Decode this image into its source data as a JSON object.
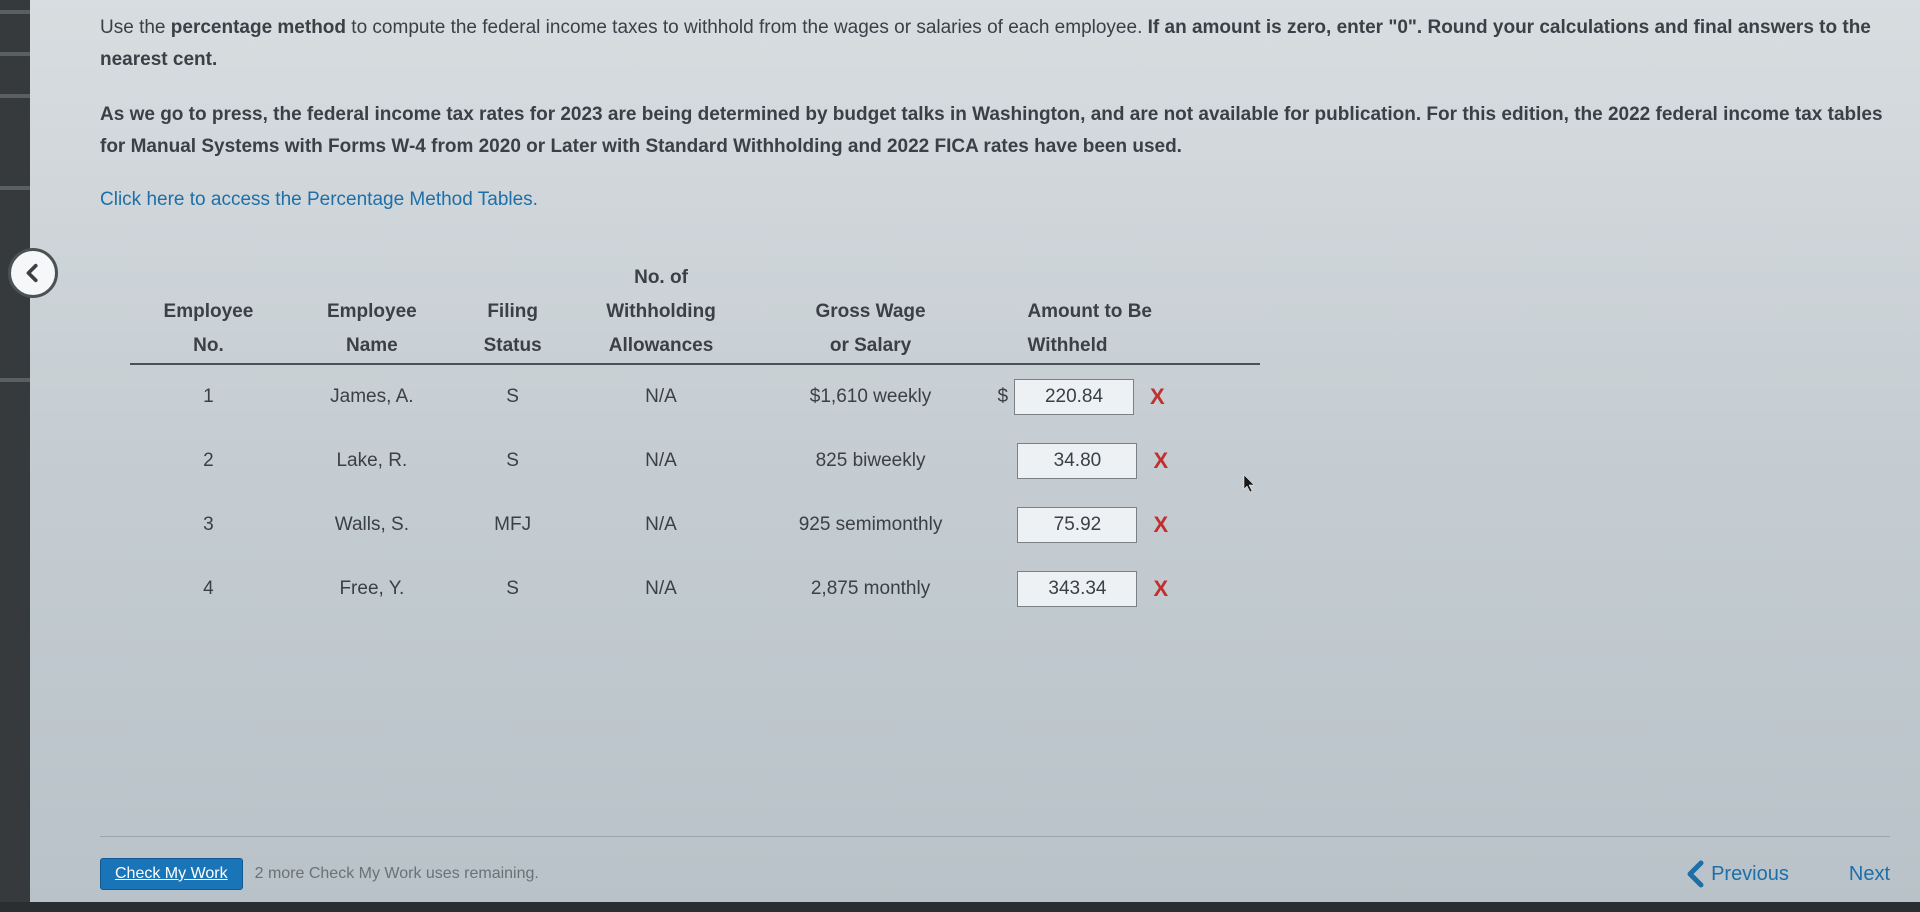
{
  "instructions": {
    "line1_pre": "Use the ",
    "line1_bold": "percentage method",
    "line1_post": " to compute the federal income taxes to withhold from the wages or salaries of each employee. ",
    "line1_tail_bold": "If an amount is zero, enter \"0\". Round your calculations and final answers to the nearest cent."
  },
  "note": "As we go to press, the federal income tax rates for 2023 are being determined by budget talks in Washington, and are not available for publication. For this edition, the 2022 federal income tax tables for Manual Systems with Forms W-4 from 2020 or Later with Standard Withholding and 2022 FICA rates have been used.",
  "link_text": "Click here to access the Percentage Method Tables.",
  "table": {
    "headers": {
      "emp_no": "Employee No.",
      "emp_no_top": "Employee",
      "emp_no_bot": "No.",
      "emp_name_top": "Employee",
      "emp_name_bot": "Name",
      "filing_top": "Filing",
      "filing_bot": "Status",
      "allow_pre": "No. of",
      "allow_top": "Withholding",
      "allow_bot": "Allowances",
      "wage_top": "Gross Wage",
      "wage_bot": "or Salary",
      "amount_top": "Amount to Be",
      "amount_bot": "Withheld"
    },
    "rows": [
      {
        "no": "1",
        "name": "James, A.",
        "status": "S",
        "allow": "N/A",
        "wage": "$1,610 weekly",
        "amount": "220.84",
        "show_dollar": true,
        "marked_wrong": true
      },
      {
        "no": "2",
        "name": "Lake, R.",
        "status": "S",
        "allow": "N/A",
        "wage": "825 biweekly",
        "amount": "34.80",
        "show_dollar": false,
        "marked_wrong": true
      },
      {
        "no": "3",
        "name": "Walls, S.",
        "status": "MFJ",
        "allow": "N/A",
        "wage": "925 semimonthly",
        "amount": "75.92",
        "show_dollar": false,
        "marked_wrong": true
      },
      {
        "no": "4",
        "name": "Free, Y.",
        "status": "S",
        "allow": "N/A",
        "wage": "2,875 monthly",
        "amount": "343.34",
        "show_dollar": false,
        "marked_wrong": true
      }
    ]
  },
  "footer": {
    "check_btn": "Check My Work",
    "uses": "2 more Check My Work uses remaining.",
    "previous": "Previous",
    "next": "Next"
  },
  "colors": {
    "text": "#3a4046",
    "link": "#1e6fa8",
    "wrong_mark": "#c03030",
    "button_bg": "#1a74b8",
    "border": "#4a5256",
    "input_border": "#7a8186",
    "input_bg": "#eef1f3"
  }
}
